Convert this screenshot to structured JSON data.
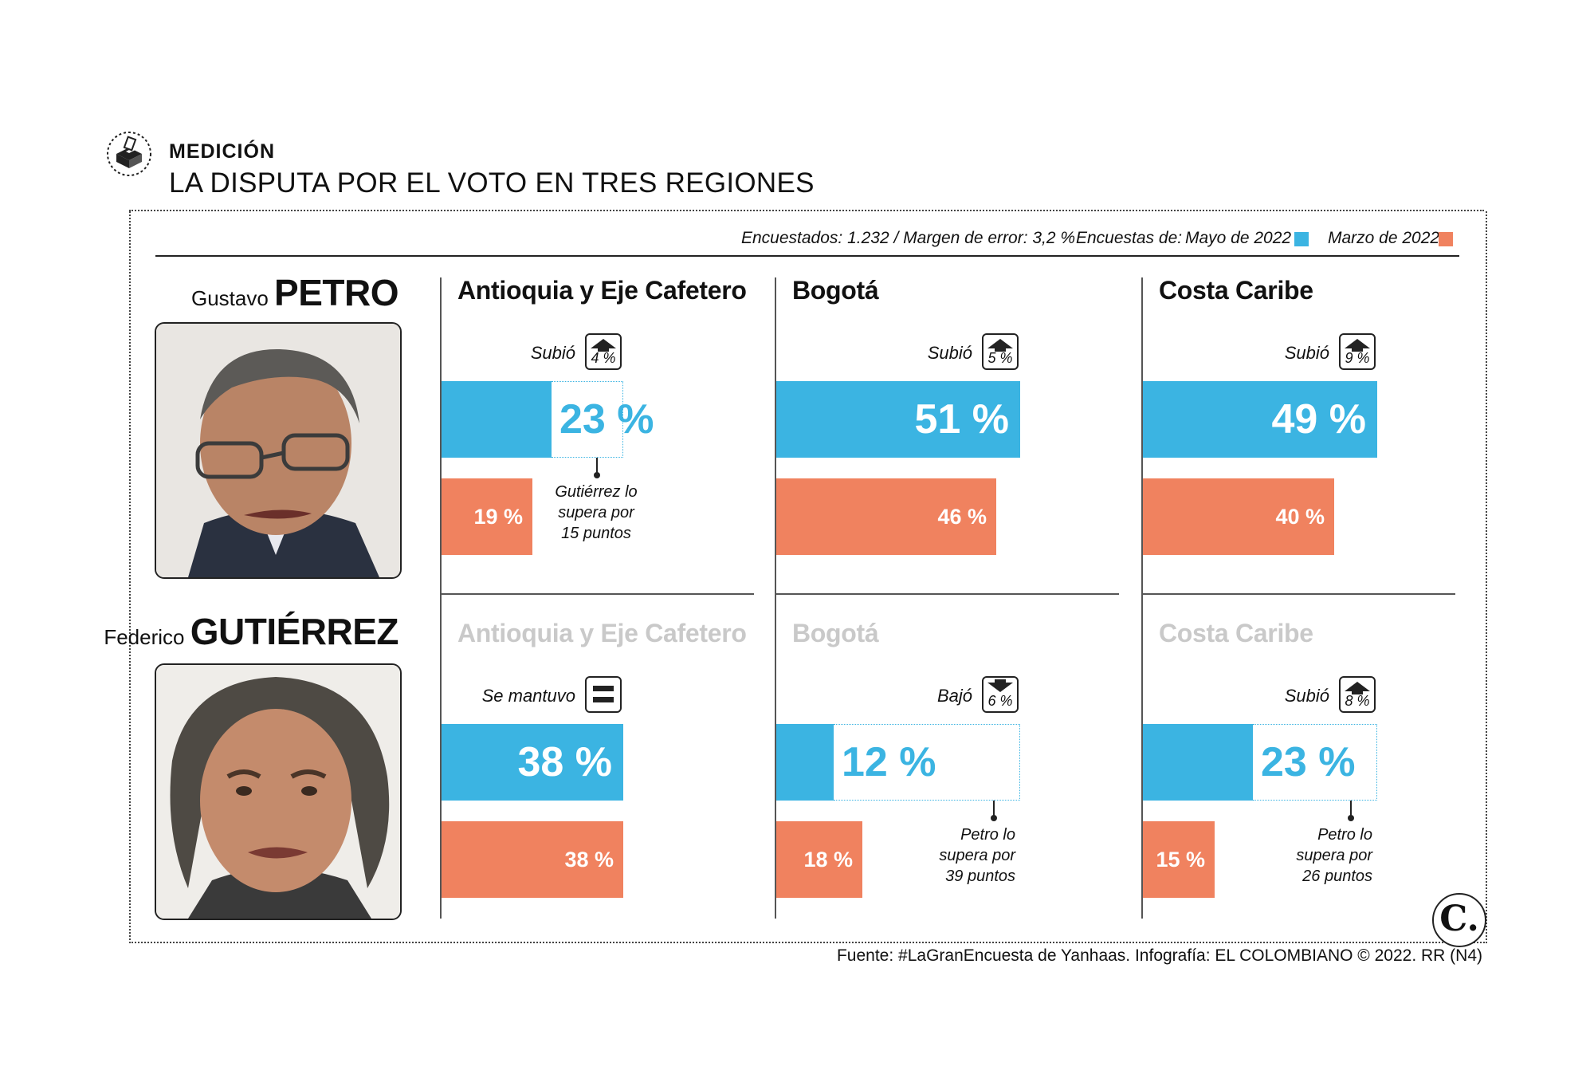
{
  "header": {
    "kicker": "MEDICIÓN",
    "title": "LA DISPUTA POR EL VOTO EN TRES REGIONES"
  },
  "legend": {
    "meta": "Encuestados: 1.232 / Margen de error: 3,2 %",
    "prefix": "Encuestas de:",
    "may": "Mayo de 2022",
    "march": "Marzo de 2022"
  },
  "colors": {
    "may": "#3bb4e2",
    "march": "#f0825f"
  },
  "chart_data": {
    "type": "bar",
    "unit": "%",
    "xlim": [
      0,
      100
    ],
    "categories": [
      "Antioquia y Eje Cafetero",
      "Bogotá",
      "Costa Caribe"
    ],
    "candidates": [
      {
        "first": "Gustavo",
        "last": "PETRO",
        "regions": [
          {
            "region": "Antioquia y Eje Cafetero",
            "may": 23,
            "march": 19,
            "may_label": "23 %",
            "march_label": "19 %",
            "trend": "up",
            "status": "Subió",
            "change": "4 %",
            "rival_value": 38,
            "note": [
              "Gutiérrez lo",
              "supera por",
              "15 puntos"
            ]
          },
          {
            "region": "Bogotá",
            "may": 51,
            "march": 46,
            "may_label": "51 %",
            "march_label": "46 %",
            "trend": "up",
            "status": "Subió",
            "change": "5 %"
          },
          {
            "region": "Costa Caribe",
            "may": 49,
            "march": 40,
            "may_label": "49 %",
            "march_label": "40 %",
            "trend": "up",
            "status": "Subió",
            "change": "9 %"
          }
        ]
      },
      {
        "first": "Federico",
        "last": "GUTIÉRREZ",
        "regions": [
          {
            "region": "Antioquia y Eje Cafetero",
            "may": 38,
            "march": 38,
            "may_label": "38 %",
            "march_label": "38 %",
            "trend": "same",
            "status": "Se mantuvo",
            "change": ""
          },
          {
            "region": "Bogotá",
            "may": 12,
            "march": 18,
            "may_label": "12 %",
            "march_label": "18 %",
            "trend": "down",
            "status": "Bajó",
            "change": "6 %",
            "rival_value": 51,
            "note": [
              "Petro lo",
              "supera por",
              "39 puntos"
            ]
          },
          {
            "region": "Costa Caribe",
            "may": 23,
            "march": 15,
            "may_label": "23 %",
            "march_label": "15 %",
            "trend": "up",
            "status": "Subió",
            "change": "8 %",
            "rival_value": 49,
            "note": [
              "Petro lo",
              "supera por",
              "26 puntos"
            ]
          }
        ]
      }
    ]
  },
  "footer": {
    "source": "Fuente: #LaGranEncuesta de Yanhaas. Infografía: EL COLOMBIANO © 2022. RR (N4)",
    "logo": "C."
  }
}
